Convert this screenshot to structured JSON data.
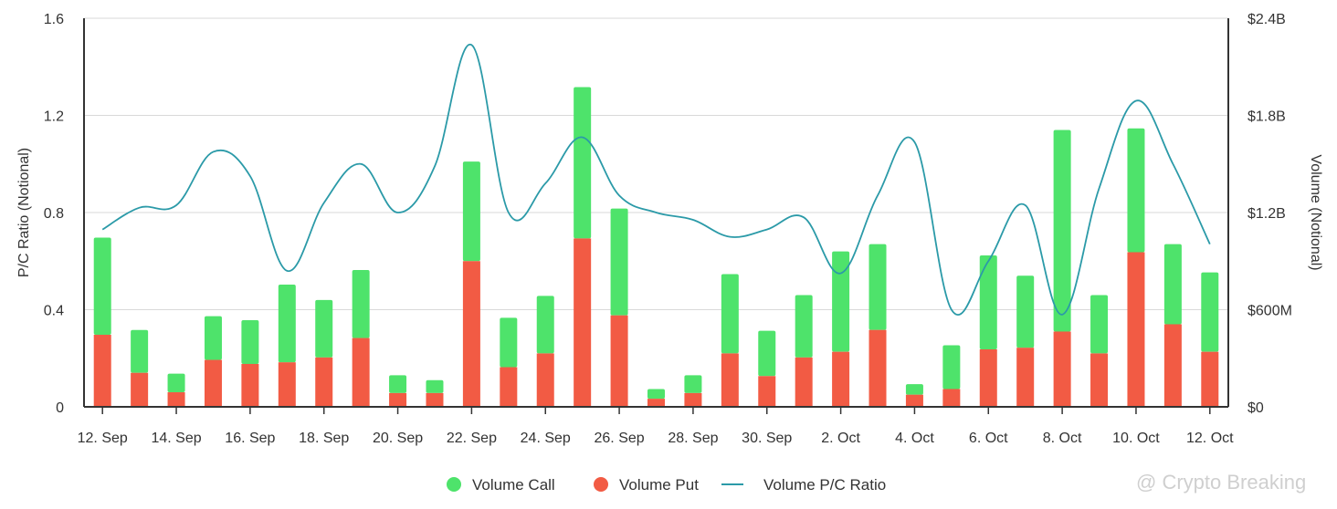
{
  "chart_data": {
    "type": "bar",
    "stacked": true,
    "categories": [
      "12. Sep",
      "13. Sep",
      "14. Sep",
      "15. Sep",
      "16. Sep",
      "17. Sep",
      "18. Sep",
      "19. Sep",
      "20. Sep",
      "21. Sep",
      "22. Sep",
      "23. Sep",
      "24. Sep",
      "25. Sep",
      "26. Sep",
      "27. Sep",
      "28. Sep",
      "29. Sep",
      "30. Sep",
      "1. Oct",
      "2. Oct",
      "3. Oct",
      "4. Oct",
      "5. Oct",
      "6. Oct",
      "7. Oct",
      "8. Oct",
      "9. Oct",
      "10. Oct",
      "11. Oct",
      "12. Oct"
    ],
    "x_tick_labels": [
      "12. Sep",
      "14. Sep",
      "16. Sep",
      "18. Sep",
      "20. Sep",
      "22. Sep",
      "24. Sep",
      "26. Sep",
      "28. Sep",
      "30. Sep",
      "2. Oct",
      "4. Oct",
      "6. Oct",
      "8. Oct",
      "10. Oct",
      "12. Oct"
    ],
    "series": [
      {
        "name": "Volume Put",
        "axis": "right",
        "type": "bar",
        "color": "#f25b44",
        "values": [
          445,
          210,
          90,
          290,
          265,
          275,
          305,
          425,
          85,
          85,
          900,
          245,
          330,
          1040,
          565,
          50,
          85,
          330,
          190,
          305,
          340,
          475,
          75,
          110,
          355,
          365,
          465,
          330,
          955,
          510,
          340
        ]
      },
      {
        "name": "Volume Call",
        "axis": "right",
        "type": "bar",
        "color": "#4ee36b",
        "values": [
          600,
          265,
          115,
          270,
          270,
          480,
          355,
          420,
          110,
          80,
          615,
          305,
          355,
          935,
          660,
          60,
          110,
          490,
          280,
          385,
          620,
          530,
          65,
          270,
          580,
          445,
          1245,
          360,
          765,
          495,
          490
        ]
      },
      {
        "name": "Volume P/C Ratio",
        "axis": "left",
        "type": "line",
        "color": "#2b9aa8",
        "values": [
          0.73,
          0.82,
          0.83,
          1.05,
          0.95,
          0.56,
          0.84,
          1.0,
          0.8,
          0.99,
          1.49,
          0.8,
          0.92,
          1.11,
          0.87,
          0.8,
          0.77,
          0.7,
          0.73,
          0.78,
          0.55,
          0.87,
          1.09,
          0.4,
          0.6,
          0.83,
          0.38,
          0.9,
          1.26,
          1.0,
          0.67
        ]
      }
    ],
    "y_left": {
      "label": "P/C Ratio (Notional)",
      "min": 0,
      "max": 1.6,
      "ticks": [
        "0",
        "0.4",
        "0.8",
        "1.2",
        "1.6"
      ],
      "tick_values": [
        0,
        0.4,
        0.8,
        1.2,
        1.6
      ]
    },
    "y_right": {
      "label": "Volume (Notional)",
      "min": 0,
      "max": 2400,
      "unit": "$M",
      "ticks": [
        "$0",
        "$600M",
        "$1.2B",
        "$1.8B",
        "$2.4B"
      ],
      "tick_values": [
        0,
        600,
        1200,
        1800,
        2400
      ]
    },
    "grid": true,
    "legend_position": "bottom-center",
    "legend": [
      {
        "label": "Volume Call",
        "color": "#4ee36b",
        "shape": "circle"
      },
      {
        "label": "Volume Put",
        "color": "#f25b44",
        "shape": "circle"
      },
      {
        "label": "Volume P/C Ratio",
        "color": "#2b9aa8",
        "shape": "line"
      }
    ]
  },
  "watermark": "@ Crypto Breaking"
}
